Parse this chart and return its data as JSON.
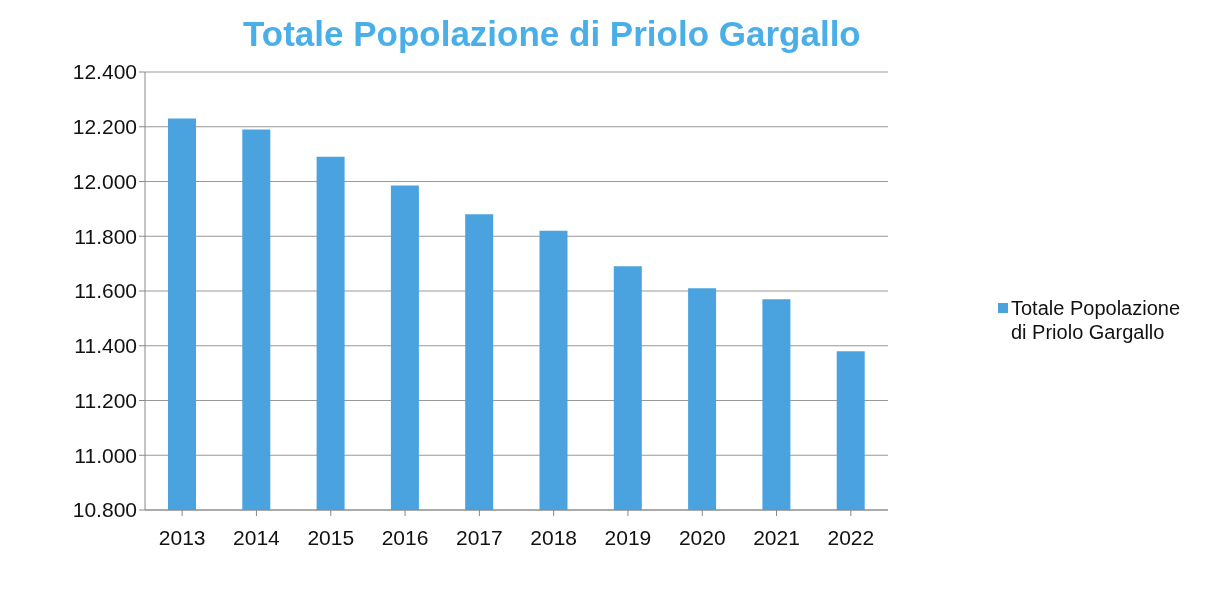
{
  "chart_data": {
    "type": "bar",
    "title": "Totale Popolazione di Priolo Gargallo",
    "categories": [
      "2013",
      "2014",
      "2015",
      "2016",
      "2017",
      "2018",
      "2019",
      "2020",
      "2021",
      "2022"
    ],
    "series": [
      {
        "name": "Totale Popolazione di Priolo Gargallo",
        "color": "#4aa3df",
        "values": [
          12230,
          12190,
          12090,
          11985,
          11880,
          11820,
          11690,
          11610,
          11570,
          11380
        ]
      }
    ],
    "ylim": [
      10800,
      12400
    ],
    "yticks": [
      {
        "value": 10800,
        "label": "10.800"
      },
      {
        "value": 11000,
        "label": "11.000"
      },
      {
        "value": 11200,
        "label": "11.200"
      },
      {
        "value": 11400,
        "label": "11.400"
      },
      {
        "value": 11600,
        "label": "11.600"
      },
      {
        "value": 11800,
        "label": "11.800"
      },
      {
        "value": 12000,
        "label": "12.000"
      },
      {
        "value": 12200,
        "label": "12.200"
      },
      {
        "value": 12400,
        "label": "12.400"
      }
    ],
    "grid": "y",
    "legend": "right"
  }
}
